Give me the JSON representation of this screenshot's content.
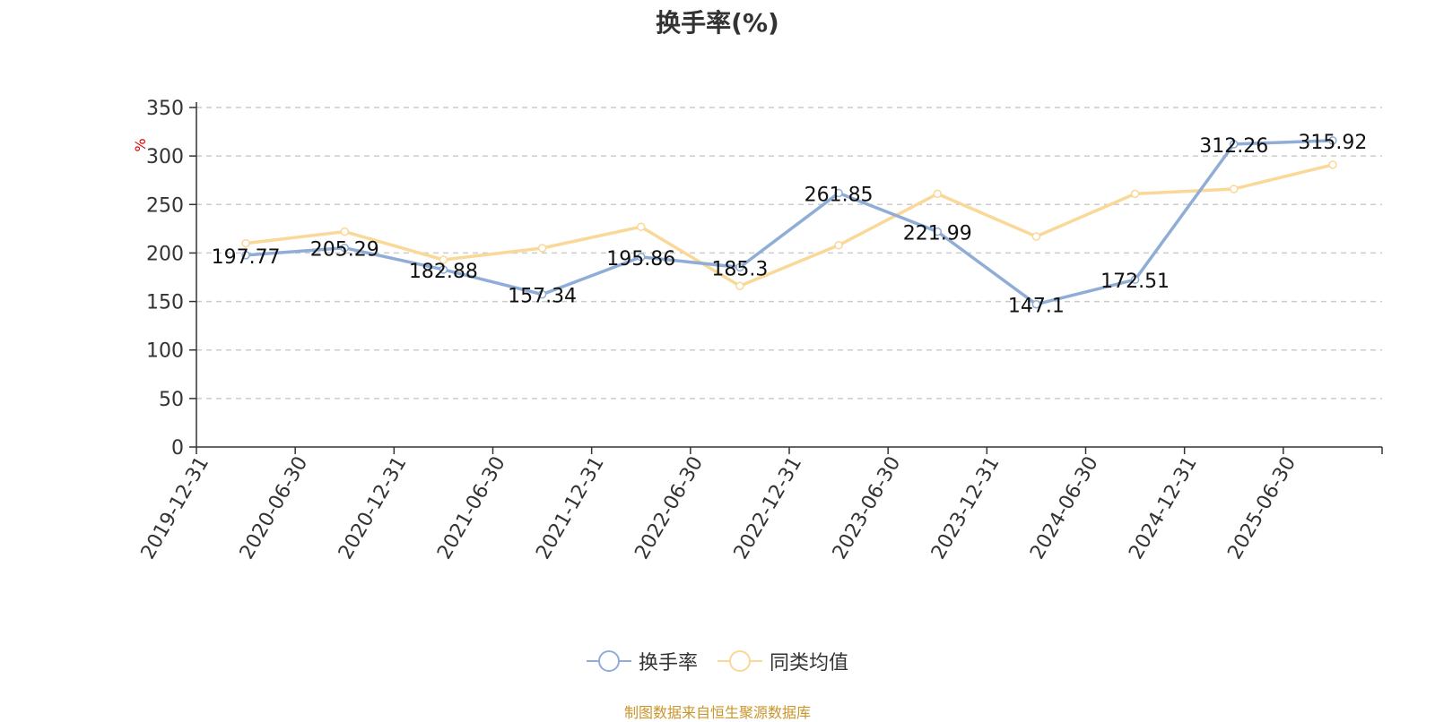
{
  "chart_data": {
    "type": "line",
    "title": "换手率(%)",
    "ylabel": "%",
    "ylim": [
      0,
      350
    ],
    "yticks": [
      0,
      50,
      100,
      150,
      200,
      250,
      300,
      350
    ],
    "grid": true,
    "legend_position": "bottom",
    "categories": [
      "2019-12-31",
      "2020-06-30",
      "2020-12-31",
      "2021-06-30",
      "2021-12-31",
      "2022-06-30",
      "2022-12-31",
      "2023-06-30",
      "2023-12-31",
      "2024-06-30",
      "2024-12-31",
      "2025-06-30"
    ],
    "series": [
      {
        "name": "换手率",
        "color": "#8fadd6",
        "show_labels": true,
        "values": [
          197.77,
          205.29,
          182.88,
          157.34,
          195.86,
          185.3,
          261.85,
          221.99,
          147.1,
          172.51,
          312.26,
          315.92
        ]
      },
      {
        "name": "同类均值",
        "color": "#f9d898",
        "show_labels": false,
        "values": [
          210,
          222,
          193,
          205,
          227,
          166,
          208,
          261,
          217,
          261,
          266,
          291
        ]
      }
    ]
  },
  "source_note": "制图数据来自恒生聚源数据库"
}
